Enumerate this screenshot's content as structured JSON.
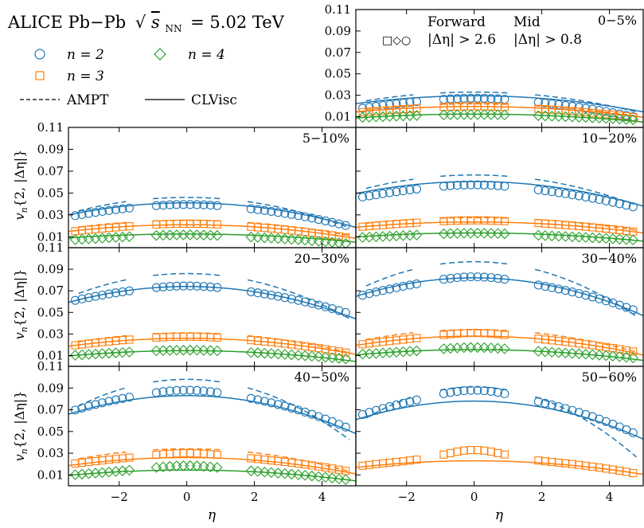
{
  "figure": {
    "title": "ALICE Pb−Pb √s_NN = 5.02 TeV",
    "title_parts": {
      "main": "ALICE Pb−Pb",
      "sqrt": "√",
      "s": "s",
      "sub": "NN",
      "tail": "= 5.02 TeV"
    },
    "ylabel": "v_n{2, |Δη|}",
    "ylabel_parts": {
      "v": "v",
      "n": "n",
      "rest": "{2, |Δη|}"
    },
    "xlabel": "η",
    "legend": {
      "n2": "n = 2",
      "n3": "n = 3",
      "n4": "n = 4",
      "ampt": "AMPT",
      "clvisc": "CLVisc",
      "forward_title": "Forward",
      "forward_cut": "|Δη| > 2.6",
      "mid_title": "Mid",
      "mid_cut": "|Δη| > 0.8",
      "marker_symbols": "□◇○"
    },
    "colors": {
      "n2": "#1f77b4",
      "n3": "#ff7f0e",
      "n4": "#2ca02c",
      "axes": "#000000"
    }
  },
  "chart_data": {
    "type": "scatter",
    "layout": "3x2 grid of panels plus one panel at top-right, shared x and y axes",
    "x_range": [
      -3.5,
      5.0
    ],
    "y_range": [
      0.0,
      0.11
    ],
    "xticks": [
      -2,
      0,
      2,
      4
    ],
    "xtick_labels": [
      "−2",
      "0",
      "2",
      "4"
    ],
    "yticks": [
      0.01,
      0.03,
      0.05,
      0.07,
      0.09,
      0.11
    ],
    "ytick_labels": [
      "0.01",
      "0.03",
      "0.05",
      "0.07",
      "0.09",
      "0.11"
    ],
    "eta_bins": [
      -3.3,
      -3.1,
      -2.9,
      -2.7,
      -2.5,
      -2.3,
      -2.1,
      -1.9,
      -1.7,
      -0.9,
      -0.7,
      -0.5,
      -0.3,
      -0.1,
      0.1,
      0.3,
      0.5,
      0.7,
      0.9,
      1.9,
      2.1,
      2.3,
      2.5,
      2.7,
      2.9,
      3.1,
      3.3,
      3.5,
      3.7,
      3.9,
      4.1,
      4.3,
      4.5,
      4.7
    ],
    "panels": [
      {
        "centrality": "0−5%",
        "series": [
          {
            "name": "n = 2",
            "params": {
              "c": 0.0255,
              "b": 0.0007,
              "h": 0.0018,
              "w": 1.2
            },
            "ampt": {
              "c": 0.033,
              "b": 0.0008
            },
            "clvisc": {
              "c": 0.0295,
              "b": 0.0006
            }
          },
          {
            "name": "n = 3",
            "params": {
              "c": 0.0185,
              "b": 0.0004,
              "h": 0.0012,
              "w": 1.2
            },
            "ampt": {
              "c": 0.022,
              "b": 0.0005
            },
            "clvisc": {
              "c": 0.0195,
              "b": 0.0004
            }
          },
          {
            "name": "n = 4",
            "params": {
              "c": 0.0115,
              "b": 0.0002,
              "h": 0.0005,
              "w": 1.2
            },
            "ampt": null,
            "clvisc": {
              "c": 0.0125,
              "b": 0.0003
            }
          }
        ]
      },
      {
        "centrality": "5−10%",
        "series": [
          {
            "name": "n = 2",
            "params": {
              "c": 0.038,
              "b": 0.0008,
              "h": 0.0015,
              "w": 1.2
            },
            "ampt": {
              "c": 0.046,
              "b": 0.0012
            },
            "clvisc": {
              "c": 0.041,
              "b": 0.0009
            }
          },
          {
            "name": "n = 3",
            "params": {
              "c": 0.0205,
              "b": 0.0005,
              "h": 0.0015,
              "w": 1.2
            },
            "ampt": {
              "c": 0.025,
              "b": 0.0006
            },
            "clvisc": {
              "c": 0.021,
              "b": 0.0005
            }
          },
          {
            "name": "n = 4",
            "params": {
              "c": 0.0105,
              "b": 0.0003,
              "h": 0.0012,
              "w": 1.2
            },
            "ampt": null,
            "clvisc": {
              "c": 0.0125,
              "b": 0.0003
            }
          }
        ]
      },
      {
        "centrality": "10−20%",
        "series": [
          {
            "name": "n = 2",
            "params": {
              "c": 0.055,
              "b": 0.0008,
              "h": 0.0025,
              "w": 1.2
            },
            "ampt": {
              "c": 0.0665,
              "b": 0.0012
            },
            "clvisc": {
              "c": 0.0605,
              "b": 0.0009
            }
          },
          {
            "name": "n = 3",
            "params": {
              "c": 0.0235,
              "b": 0.0004,
              "h": 0.0015,
              "w": 1.2
            },
            "ampt": {
              "c": 0.0275,
              "b": 0.0005
            },
            "clvisc": {
              "c": 0.0235,
              "b": 0.0004
            }
          },
          {
            "name": "n = 4",
            "params": {
              "c": 0.0115,
              "b": 0.0002,
              "h": 0.0018,
              "w": 1.2
            },
            "ampt": null,
            "clvisc": {
              "c": 0.0135,
              "b": 0.0003
            }
          }
        ]
      },
      {
        "centrality": "20−30%",
        "series": [
          {
            "name": "n = 2",
            "params": {
              "c": 0.072,
              "b": 0.001,
              "h": 0.0025,
              "w": 1.2
            },
            "ampt": {
              "c": 0.086,
              "b": 0.0018
            },
            "clvisc": {
              "c": 0.074,
              "b": 0.0012
            }
          },
          {
            "name": "n = 3",
            "params": {
              "c": 0.026,
              "b": 0.0006,
              "h": 0.0015,
              "w": 1.2
            },
            "ampt": {
              "c": 0.031,
              "b": 0.0008
            },
            "clvisc": {
              "c": 0.026,
              "b": 0.0006
            }
          },
          {
            "name": "n = 4",
            "params": {
              "c": 0.0135,
              "b": 0.0003,
              "h": 0.0015,
              "w": 1.2
            },
            "ampt": null,
            "clvisc": {
              "c": 0.0145,
              "b": 0.0004
            }
          }
        ]
      },
      {
        "centrality": "30−40%",
        "series": [
          {
            "name": "n = 2",
            "params": {
              "c": 0.079,
              "b": 0.0012,
              "h": 0.004,
              "w": 1.0
            },
            "ampt": {
              "c": 0.097,
              "b": 0.0022
            },
            "clvisc": {
              "c": 0.082,
              "b": 0.0014
            }
          },
          {
            "name": "n = 3",
            "params": {
              "c": 0.027,
              "b": 0.0006,
              "h": 0.004,
              "w": 1.0
            },
            "ampt": {
              "c": 0.034,
              "b": 0.0009
            },
            "clvisc": {
              "c": 0.028,
              "b": 0.0007
            }
          },
          {
            "name": "n = 4",
            "params": {
              "c": 0.0145,
              "b": 0.0003,
              "h": 0.003,
              "w": 1.0
            },
            "ampt": null,
            "clvisc": {
              "c": 0.0155,
              "b": 0.0004
            }
          }
        ]
      },
      {
        "centrality": "40−50%",
        "series": [
          {
            "name": "n = 2",
            "params": {
              "c": 0.085,
              "b": 0.0014,
              "h": 0.003,
              "w": 1.0
            },
            "ampt": {
              "c": 0.098,
              "b": 0.0024
            },
            "clvisc": {
              "c": 0.083,
              "b": 0.0014
            }
          },
          {
            "name": "n = 3",
            "params": {
              "c": 0.027,
              "b": 0.0006,
              "h": 0.003,
              "w": 1.0
            },
            "ampt": {
              "c": 0.034,
              "b": 0.0009
            },
            "clvisc": {
              "c": 0.026,
              "b": 0.0006
            }
          },
          {
            "name": "n = 4",
            "params": {
              "c": 0.0145,
              "b": 0.0004,
              "h": 0.004,
              "w": 1.0
            },
            "ampt": null,
            "clvisc": {
              "c": 0.0145,
              "b": 0.0004
            }
          }
        ]
      },
      {
        "centrality": "50−60%",
        "series": [
          {
            "name": "n = 2",
            "params": {
              "c": 0.082,
              "b": 0.0015,
              "h": 0.006,
              "w": 1.0
            },
            "ampt": {
              "c": 0.091,
              "b": 0.0028
            },
            "clvisc": {
              "c": 0.078,
              "b": 0.0014
            }
          },
          {
            "name": "n = 3",
            "params": {
              "c": 0.025,
              "b": 0.0006,
              "h": 0.008,
              "w": 0.8
            },
            "ampt": null,
            "clvisc": {
              "c": 0.023,
              "b": 0.0005
            }
          }
        ]
      }
    ]
  }
}
